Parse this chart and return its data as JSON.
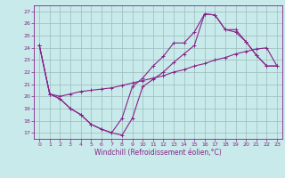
{
  "xlabel": "Windchill (Refroidissement éolien,°C)",
  "xlim": [
    -0.5,
    23.5
  ],
  "ylim": [
    16.5,
    27.5
  ],
  "xticks": [
    0,
    1,
    2,
    3,
    4,
    5,
    6,
    7,
    8,
    9,
    10,
    11,
    12,
    13,
    14,
    15,
    16,
    17,
    18,
    19,
    20,
    21,
    22,
    23
  ],
  "yticks": [
    17,
    18,
    19,
    20,
    21,
    22,
    23,
    24,
    25,
    26,
    27
  ],
  "bg_color": "#c8eaea",
  "line_color": "#882288",
  "grid_color": "#99bbbb",
  "line1_x": [
    0,
    1,
    2,
    3,
    4,
    5,
    6,
    7,
    8,
    9,
    10,
    11,
    12,
    13,
    14,
    15,
    16,
    17,
    18,
    19,
    20,
    21,
    22,
    23
  ],
  "line1_y": [
    24.2,
    20.2,
    19.8,
    19.0,
    18.5,
    17.7,
    17.3,
    17.0,
    16.8,
    18.2,
    20.8,
    21.4,
    22.0,
    22.8,
    23.5,
    24.2,
    26.8,
    26.7,
    25.5,
    25.3,
    24.5,
    23.4,
    22.5,
    22.5
  ],
  "line2_x": [
    0,
    1,
    2,
    3,
    4,
    5,
    6,
    7,
    8,
    9,
    10,
    11,
    12,
    13,
    14,
    15,
    16,
    17,
    18,
    19,
    20,
    21,
    22,
    23
  ],
  "line2_y": [
    24.2,
    20.2,
    20.0,
    20.2,
    20.4,
    20.5,
    20.6,
    20.7,
    20.9,
    21.1,
    21.3,
    21.5,
    21.7,
    22.0,
    22.2,
    22.5,
    22.7,
    23.0,
    23.2,
    23.5,
    23.7,
    23.9,
    24.0,
    22.5
  ],
  "line3_x": [
    0,
    1,
    2,
    3,
    4,
    5,
    6,
    7,
    8,
    9,
    10,
    11,
    12,
    13,
    14,
    15,
    16,
    17,
    18,
    19,
    20,
    21,
    22,
    23
  ],
  "line3_y": [
    24.2,
    20.2,
    19.8,
    19.0,
    18.5,
    17.7,
    17.3,
    17.0,
    18.2,
    20.8,
    21.5,
    22.5,
    23.3,
    24.4,
    24.4,
    25.3,
    26.8,
    26.7,
    25.5,
    25.5,
    24.5,
    23.4,
    22.5,
    22.5
  ]
}
